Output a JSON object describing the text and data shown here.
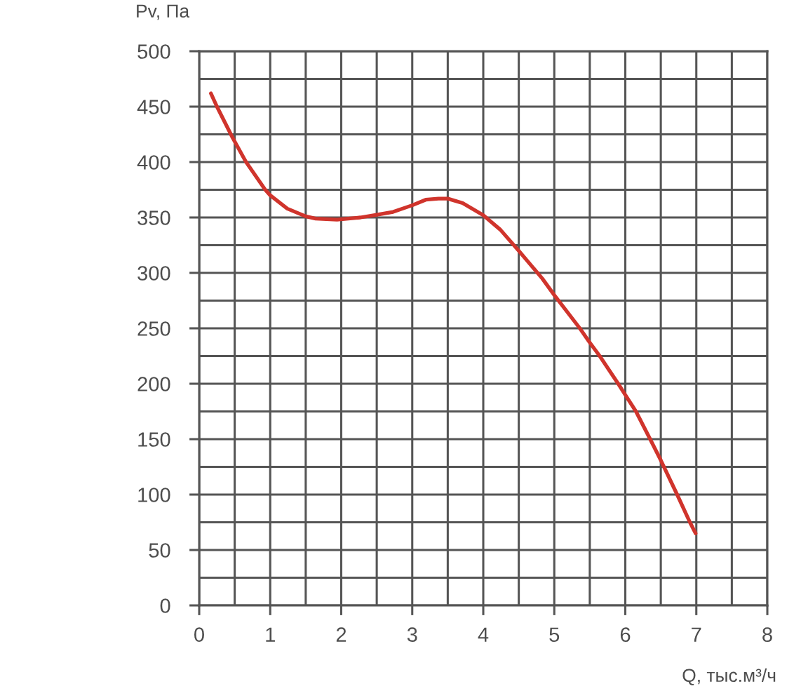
{
  "chart_data": {
    "type": "line",
    "xlabel": "Q, тыс.м³/ч",
    "ylabel": "Pv, Па",
    "x": [
      0.165,
      0.25,
      0.47,
      0.66,
      0.93,
      1.0,
      1.24,
      1.5,
      1.64,
      1.94,
      2.27,
      2.46,
      2.73,
      3.0,
      3.19,
      3.37,
      3.5,
      3.71,
      4.0,
      4.24,
      4.5,
      4.83,
      5.0,
      5.36,
      5.49,
      5.64,
      5.9,
      6.0,
      6.15,
      6.35,
      6.5,
      6.73,
      6.91,
      6.99
    ],
    "series": [
      {
        "color": "#d0342c",
        "values": [
          462,
          450,
          422,
          400,
          375,
          370,
          358,
          351,
          349,
          348,
          350,
          352,
          355,
          361,
          366,
          367,
          367,
          363,
          352,
          339,
          320,
          295,
          280,
          250,
          238,
          225,
          200,
          190,
          175,
          150,
          131,
          100,
          75,
          65
        ]
      }
    ],
    "xlim": [
      0,
      8
    ],
    "ylim": [
      0,
      500
    ],
    "xticks": [
      0,
      {
        "value": 0.5,
        "label": null
      },
      1,
      {
        "value": 1.5,
        "label": null
      },
      2,
      {
        "value": 2.5,
        "label": null
      },
      3,
      {
        "value": 3.5,
        "label": null
      },
      4,
      {
        "value": 4.5,
        "label": null
      },
      5,
      {
        "value": 5.5,
        "label": null
      },
      6,
      {
        "value": 6.5,
        "label": null
      },
      7,
      {
        "value": 7.5,
        "label": null
      },
      8
    ],
    "yticks": [
      0,
      {
        "value": 25,
        "label": null
      },
      50,
      {
        "value": 75,
        "label": null
      },
      100,
      {
        "value": 125,
        "label": null
      },
      150,
      {
        "value": 175,
        "label": null
      },
      200,
      {
        "value": 225,
        "label": null
      },
      250,
      {
        "value": 275,
        "label": null
      },
      300,
      {
        "value": 325,
        "label": null
      },
      350,
      {
        "value": 375,
        "label": null
      },
      400,
      {
        "value": 425,
        "label": null
      },
      450,
      {
        "value": 475,
        "label": null
      },
      500
    ],
    "grid": true,
    "marker": "none",
    "line_style": "solid"
  }
}
